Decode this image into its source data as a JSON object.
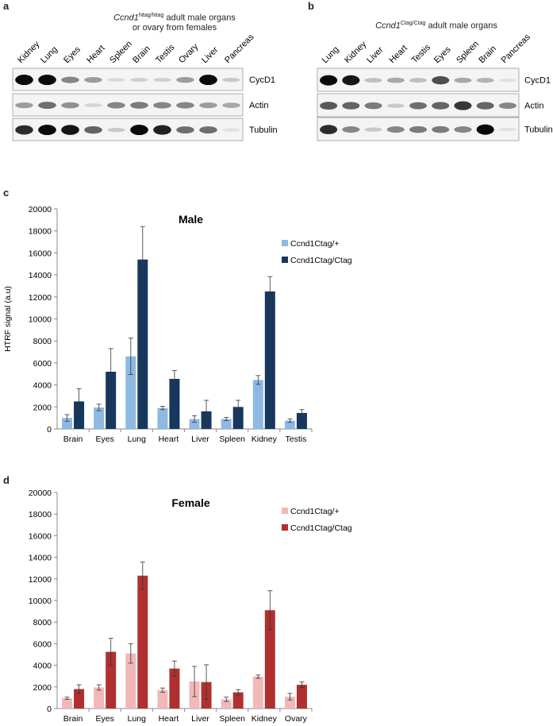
{
  "panels": {
    "a": "a",
    "b": "b",
    "c": "c",
    "d": "d"
  },
  "blot_a": {
    "title_gene": "Ccnd1",
    "title_sup": "Ntag/Ntag",
    "title_rest": " adult male organs",
    "title_line2": "or ovary from females",
    "lanes": [
      "Kidney",
      "Lung",
      "Eyes",
      "Heart",
      "Spleen",
      "Brain",
      "Testis",
      "Ovary",
      "Liver",
      "Pancreas"
    ],
    "rows": [
      "CycD1",
      "Actin",
      "Tubulin"
    ],
    "intensity": [
      [
        1.0,
        1.0,
        0.45,
        0.35,
        0.08,
        0.12,
        0.12,
        0.35,
        1.0,
        0.15
      ],
      [
        0.35,
        0.55,
        0.4,
        0.1,
        0.45,
        0.5,
        0.45,
        0.45,
        0.35,
        0.3
      ],
      [
        0.85,
        1.0,
        0.95,
        0.6,
        0.15,
        1.0,
        0.9,
        0.55,
        0.55,
        0.05
      ]
    ]
  },
  "blot_b": {
    "title_gene": "Ccnd1",
    "title_sup": "Ctag/Ctag",
    "title_rest": " adult male organs",
    "lanes": [
      "Lung",
      "Kidney",
      "Liver",
      "Heart",
      "Testis",
      "Eyes",
      "Spleen",
      "Brain",
      "Pancreas"
    ],
    "rows": [
      "CycD1",
      "Actin",
      "Tubulin"
    ],
    "intensity": [
      [
        1.0,
        0.95,
        0.2,
        0.3,
        0.2,
        0.7,
        0.3,
        0.25,
        0.05
      ],
      [
        0.65,
        0.6,
        0.5,
        0.15,
        0.55,
        0.6,
        0.8,
        0.6,
        0.45
      ],
      [
        0.85,
        0.45,
        0.15,
        0.45,
        0.5,
        0.5,
        0.45,
        1.0,
        0.05
      ]
    ]
  },
  "colors": {
    "male_het": "#8db9e3",
    "male_hom": "#17375e",
    "female_het": "#f2b8b8",
    "female_hom": "#b03030"
  },
  "chart_data": [
    {
      "type": "bar",
      "title": "Male",
      "ylabel": "HTRF signal (a.u)",
      "ylim": [
        0,
        20000
      ],
      "yticks": [
        "0",
        "2000",
        "4000",
        "6000",
        "8000",
        "10000",
        "12000",
        "14000",
        "16000",
        "18000",
        "20000"
      ],
      "categories": [
        "Brain",
        "Eyes",
        "Lung",
        "Heart",
        "Liver",
        "Spleen",
        "Kidney",
        "Testis"
      ],
      "legend_position": "top-right",
      "series": [
        {
          "name": "Ccnd1Ctag/+",
          "values": [
            1000,
            1950,
            6600,
            1900,
            900,
            900,
            4450,
            750
          ],
          "errors": [
            300,
            300,
            1650,
            150,
            300,
            150,
            400,
            150
          ]
        },
        {
          "name": "Ccnd1Ctag/Ctag",
          "values": [
            2500,
            5200,
            15400,
            4550,
            1600,
            2000,
            12500,
            1450
          ],
          "errors": [
            1150,
            2100,
            3000,
            750,
            1000,
            600,
            1350,
            300
          ]
        }
      ]
    },
    {
      "type": "bar",
      "title": "Female",
      "ylabel": "",
      "ylim": [
        0,
        20000
      ],
      "yticks": [
        "0",
        "2000",
        "4000",
        "6000",
        "8000",
        "10000",
        "12000",
        "14000",
        "16000",
        "18000",
        "20000"
      ],
      "categories": [
        "Brain",
        "Eyes",
        "Lung",
        "Heart",
        "Liver",
        "Spleen",
        "Kidney",
        "Ovary"
      ],
      "legend_position": "top-right",
      "series": [
        {
          "name": "Ccnd1Ctag/+",
          "values": [
            950,
            1950,
            5100,
            1700,
            2500,
            850,
            2950,
            1100
          ],
          "errors": [
            100,
            250,
            900,
            200,
            1400,
            200,
            150,
            300
          ]
        },
        {
          "name": "Ccnd1Ctag/Ctag",
          "values": [
            1800,
            5250,
            12300,
            3700,
            2450,
            1500,
            9100,
            2200
          ],
          "errors": [
            400,
            1250,
            1250,
            700,
            1600,
            250,
            1800,
            250
          ]
        }
      ]
    }
  ]
}
